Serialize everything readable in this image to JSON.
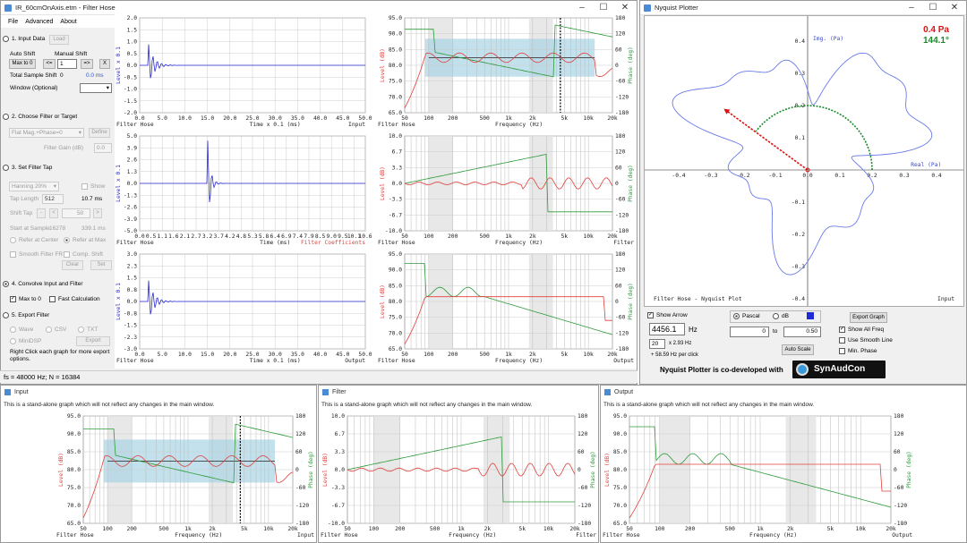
{
  "main_window": {
    "title": "IR_60cmOnAxis.etm - Filter Hose",
    "menu": [
      "File",
      "Advanced",
      "About"
    ],
    "controls": {
      "min": "–",
      "max": "☐",
      "close": "✕"
    }
  },
  "side": {
    "step1": "1. Input Data",
    "load": "Load",
    "auto_shift": "Auto Shift",
    "manual_shift": "Manual Shift",
    "max_to_0": "Max to 0",
    "shift_left": "<=",
    "shift_value": "1",
    "shift_right": "=>",
    "shift_x": "X",
    "total_sample_shift": "Total Sample Shift",
    "total_shift_value": "0",
    "total_shift_ms": "0.0 ms",
    "window_label": "Window (Optional)",
    "step2": "2. Choose Filter or Target",
    "filter_select": "Flat Mag.+Phase=0",
    "define": "Define",
    "filter_gain": "Filter Gain (dB)",
    "filter_gain_value": "0.0",
    "step3": "3. Set Filter Tap",
    "window_select": "Hanning 20%",
    "show": "Show",
    "tap_length": "Tap Length",
    "tap_value": "512",
    "tap_ms": "10.7 ms",
    "shift_tap": "Shift Tap",
    "shift_tap_btn1": "-",
    "shift_tap_btn2": "<",
    "shift_tap_value": "50",
    "shift_tap_btn3": ">",
    "start_at_sample": "Start at Sample",
    "start_value": "16278",
    "start_ms": "339.1 ms",
    "refer_center": "Refer at Center",
    "refer_max": "Refer at Max",
    "smooth_fr": "Smooth Filter FR",
    "comp_shift": "Comp. Shift",
    "clear": "Clear",
    "set": "Set",
    "step4": "4. Convolve Input and Filter",
    "max_to_0_chk": "Max to 0",
    "fast_calc": "Fast Calculation",
    "step5": "5. Export Filter",
    "wave": "Wave",
    "csv": "CSV",
    "txt": "TXT",
    "minidsp": "MiniDSP",
    "export": "Export",
    "right_click_note": "Right Click each graph for more export options."
  },
  "status": "fs = 48000 Hz; N = 16384",
  "graphs": {
    "ir1": {
      "yticks": [
        "2.0",
        "1.5",
        "1.0",
        "0.5",
        "0.0",
        "-0.5",
        "-1.0",
        "-1.5",
        "-2.0"
      ],
      "xticks": [
        "0.0",
        "5.0",
        "10.0",
        "15.0",
        "20.0",
        "25.0",
        "30.0",
        "35.0",
        "40.0",
        "45.0",
        "50.0"
      ],
      "ylabel": "Level x 0.1",
      "xlabel": "Time x 0.1 (ms)",
      "left": "Filter Hose",
      "right": "Input"
    },
    "ir2": {
      "yticks": [
        "5.0",
        "3.9",
        "2.6",
        "1.3",
        "0.0",
        "-1.3",
        "-2.6",
        "-3.9",
        "-5.0"
      ],
      "xticks": [
        "0.0",
        "0.5",
        "1.1",
        "1.6",
        "2.1",
        "2.7",
        "3.2",
        "3.7",
        "4.2",
        "4.8",
        "5.3",
        "5.8",
        "6.4",
        "6.9",
        "7.4",
        "7.9",
        "8.5",
        "9.0",
        "9.5",
        "10.1",
        "10.6"
      ],
      "ylabel": "Level x 0.1",
      "xlabel": "Time (ms)",
      "left": "Filter Hose",
      "right": "Filter Coefficients"
    },
    "ir3": {
      "yticks": [
        "3.0",
        "2.3",
        "1.5",
        "0.8",
        "0.0",
        "-0.8",
        "-1.5",
        "-2.3",
        "-3.0"
      ],
      "xticks": [
        "0.0",
        "5.0",
        "10.0",
        "15.0",
        "20.0",
        "25.0",
        "30.0",
        "35.0",
        "40.0",
        "45.0",
        "50.0"
      ],
      "ylabel": "Level x 0.1",
      "xlabel": "Time x 0.1 (ms)",
      "left": "Filter Hose",
      "right": "Output"
    },
    "fr1": {
      "yticks": [
        "95.0",
        "90.0",
        "85.0",
        "80.0",
        "75.0",
        "70.0",
        "65.0"
      ],
      "ptick": [
        "180",
        "120",
        "60",
        "0",
        "-60",
        "-120",
        "-180"
      ],
      "xticks": [
        "50",
        "100",
        "200",
        "500",
        "1k",
        "2k",
        "5k",
        "10k",
        "20k"
      ],
      "ylabel": "Level (dB)",
      "plabel": "Phase (deg)",
      "xlabel": "Frequency (Hz)",
      "left": "Filter Hose",
      "right": ""
    },
    "fr2": {
      "yticks": [
        "10.0",
        "6.7",
        "3.3",
        "0.0",
        "-3.3",
        "-6.7",
        "-10.0"
      ],
      "ptick": [
        "180",
        "120",
        "60",
        "0",
        "-60",
        "-120",
        "-180"
      ],
      "xticks": [
        "50",
        "100",
        "200",
        "500",
        "1k",
        "2k",
        "5k",
        "10k",
        "20k"
      ],
      "ylabel": "Level (dB)",
      "plabel": "Phase (deg)",
      "xlabel": "Frequency (Hz)",
      "left": "Filter Hose",
      "right": "Filter"
    },
    "fr3": {
      "yticks": [
        "95.0",
        "90.0",
        "85.0",
        "80.0",
        "75.0",
        "70.0",
        "65.0"
      ],
      "ptick": [
        "180",
        "120",
        "60",
        "0",
        "-60",
        "-120",
        "-180"
      ],
      "xticks": [
        "50",
        "100",
        "200",
        "500",
        "1k",
        "2k",
        "5k",
        "10k",
        "20k"
      ],
      "ylabel": "Level (dB)",
      "plabel": "Phase (deg)",
      "xlabel": "Frequency (Hz)",
      "left": "Filter Hose",
      "right": "Output"
    }
  },
  "nyquist": {
    "title": "Nyquist Plotter",
    "pa": "0.4 Pa",
    "deg": "144.1°",
    "img_label": "Img. (Pa)",
    "real_label": "Real (Pa)",
    "xticks": [
      "-0.4",
      "-0.3",
      "-0.2",
      "-0.1",
      "0.0",
      "0.1",
      "0.2",
      "0.3",
      "0.4"
    ],
    "yticks": [
      "0.4",
      "0.3",
      "0.2",
      "0.1",
      "-0.1",
      "-0.2",
      "-0.3",
      "-0.4"
    ],
    "footer_left": "Filter Hose - Nyquist Plot",
    "footer_right": "Input",
    "show_arrow": "Show Arrow",
    "freq_value": "4456.1",
    "hz": "Hz",
    "step_value": "20",
    "step_note": "x 2.93 Hz",
    "per_click": "+ 58.59 Hz per click",
    "pascal": "Pascal",
    "db": "dB",
    "range_from": "0",
    "to": "to",
    "range_to": "0.50",
    "auto_scale": "Auto Scale",
    "export_graph": "Export Graph",
    "show_all_freq": "Show All Freq",
    "use_smooth": "Use Smooth Line",
    "min_phase": "Min. Phase",
    "codev": "Nyquist Plotter is co-developed with",
    "brand": "SynAudCon"
  },
  "subwindows": [
    {
      "title": "Input",
      "note": "This is a stand-alone graph which will not reflect any changes in the main window.",
      "right": "Input"
    },
    {
      "title": "Filter",
      "note": "This is a stand-alone graph which will not reflect any changes in the main window.",
      "right": "Filter"
    },
    {
      "title": "Output",
      "note": "This is a stand-alone graph which will not reflect any changes in the main window.",
      "right": "Output"
    }
  ],
  "colors": {
    "level": "#e0403c",
    "phase": "#2e9a3a",
    "ir": "#2a2ad8",
    "nyq": "#6a7ae8",
    "band": "#a8d4e4"
  }
}
